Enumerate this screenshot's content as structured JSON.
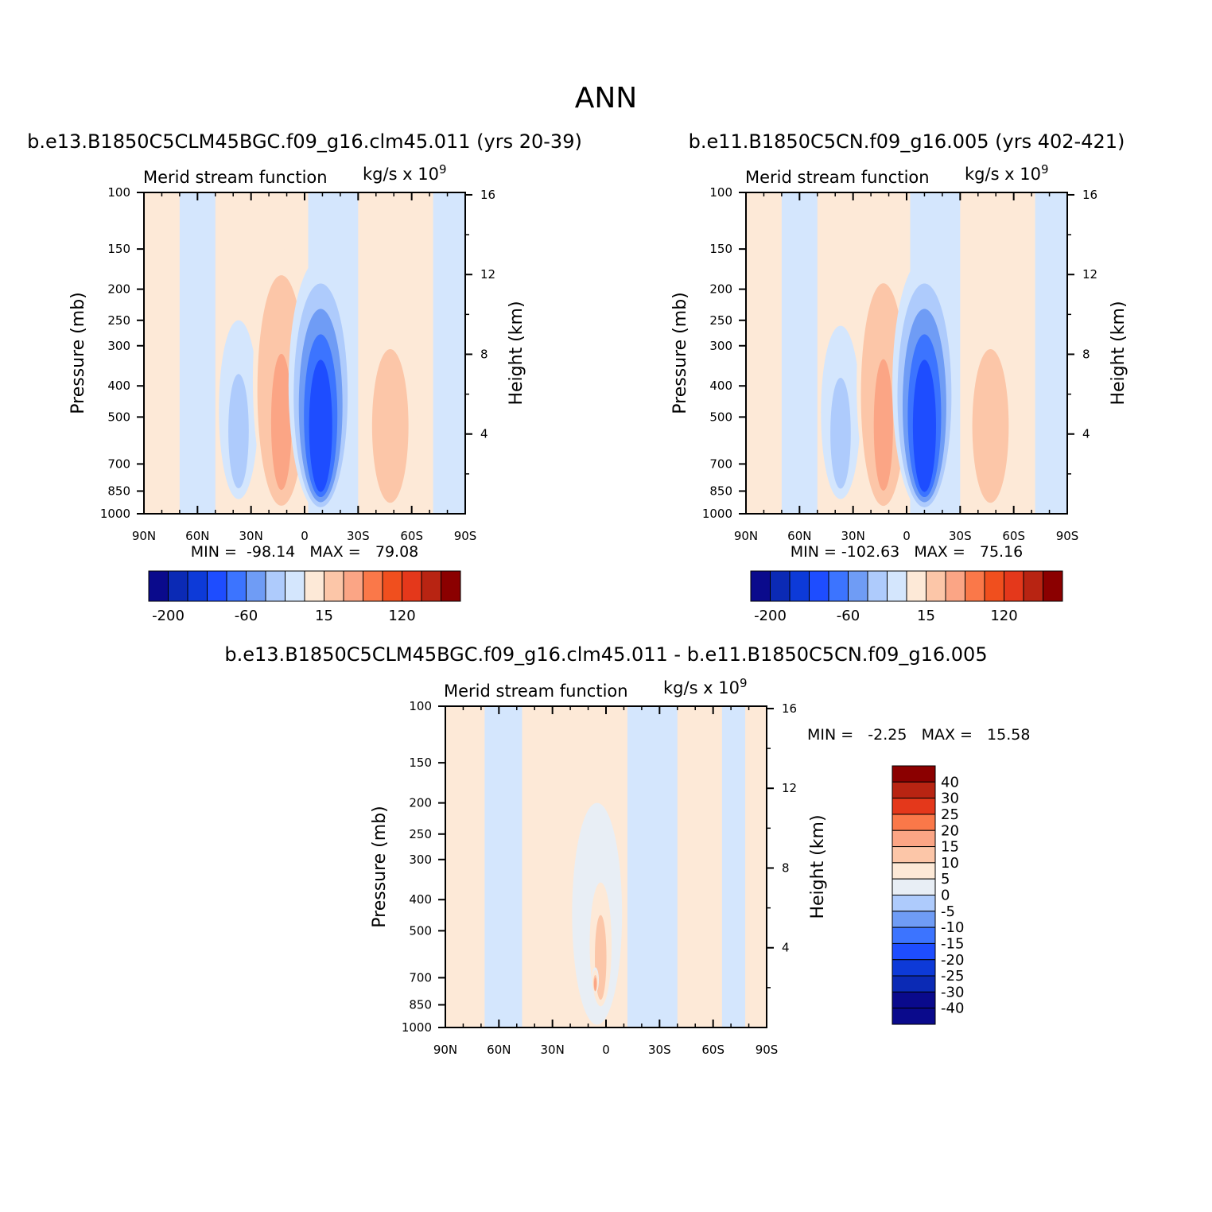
{
  "page_title": "ANN",
  "panels": [
    {
      "id": "case1",
      "title": "b.e13.B1850C5CLM45BGC.f09_g16.clm45.011 (yrs 20-39)",
      "left_label": "Merid stream function",
      "right_label": "kg/s x 10",
      "right_label_exp": "9",
      "min_max": "MIN =  -98.14   MAX =   79.08",
      "ylabel": "Pressure (mb)",
      "y2label": "Height (km)"
    },
    {
      "id": "case2",
      "title": "b.e11.B1850C5CN.f09_g16.005 (yrs 402-421)",
      "left_label": "Merid stream function",
      "right_label": "kg/s x 10",
      "right_label_exp": "9",
      "min_max": "MIN = -102.63   MAX =   75.16",
      "ylabel": "Pressure (mb)",
      "y2label": "Height (km)"
    },
    {
      "id": "diff",
      "title": "b.e13.B1850C5CLM45BGC.f09_g16.clm45.011 - b.e11.B1850C5CN.f09_g16.005",
      "left_label": "Merid stream function",
      "right_label": "kg/s x 10",
      "right_label_exp": "9",
      "min_max": "MIN =   -2.25   MAX =   15.58",
      "ylabel": "Pressure (mb)",
      "y2label": "Height (km)"
    }
  ],
  "chart_data": [
    {
      "type": "heatmap",
      "title": "b.e13.B1850C5CLM45BGC.f09_g16.clm45.011 (yrs 20-39)",
      "x_tick_labels": [
        "90N",
        "60N",
        "30N",
        "0",
        "30S",
        "60S",
        "90S"
      ],
      "x_ticks_deg": [
        90,
        60,
        30,
        0,
        -30,
        -60,
        -90
      ],
      "xlim": [
        90,
        -90
      ],
      "y_tick_labels": [
        "100",
        "150",
        "200",
        "250",
        "300",
        "400",
        "500",
        "700",
        "850",
        "1000"
      ],
      "ylim_mb": [
        1000,
        100
      ],
      "y_scale": "log",
      "y2_tick_labels": [
        "4",
        "8",
        "12",
        "16"
      ],
      "y2_ticks_km": [
        4,
        8,
        12,
        16
      ],
      "ylabel": "Pressure (mb)",
      "y2label": "Height (km)",
      "min": -98.14,
      "max": 79.08,
      "colorbar_labels": [
        "-200",
        "-60",
        "15",
        "120"
      ],
      "colors": [
        "#0a0a8c",
        "#0b2ab5",
        "#0d3ad8",
        "#1e4dff",
        "#3c74ff",
        "#6f9cf5",
        "#aecbfc",
        "#d4e6fd",
        "#fde9d7",
        "#fcc6a8",
        "#fba585",
        "#fa7849",
        "#f04f1e",
        "#e4381b",
        "#b82412",
        "#8b0000"
      ],
      "features": [
        {
          "lat": 37,
          "p_top": 250,
          "p_bot": 900,
          "width_deg": 22,
          "value": -30
        },
        {
          "lat": 13,
          "p_top": 150,
          "p_bot": 980,
          "width_deg": 32,
          "value": 45
        },
        {
          "lat": -9,
          "p_top": 160,
          "p_bot": 990,
          "width_deg": 36,
          "value": -95
        },
        {
          "lat": -48,
          "p_top": 230,
          "p_bot": 980,
          "width_deg": 30,
          "value": 35
        }
      ]
    },
    {
      "type": "heatmap",
      "title": "b.e11.B1850C5CN.f09_g16.005 (yrs 402-421)",
      "x_tick_labels": [
        "90N",
        "60N",
        "30N",
        "0",
        "30S",
        "60S",
        "90S"
      ],
      "x_ticks_deg": [
        90,
        60,
        30,
        0,
        -30,
        -60,
        -90
      ],
      "xlim": [
        90,
        -90
      ],
      "y_tick_labels": [
        "100",
        "150",
        "200",
        "250",
        "300",
        "400",
        "500",
        "700",
        "850",
        "1000"
      ],
      "ylim_mb": [
        1000,
        100
      ],
      "y_scale": "log",
      "y2_tick_labels": [
        "4",
        "8",
        "12",
        "16"
      ],
      "y2_ticks_km": [
        4,
        8,
        12,
        16
      ],
      "ylabel": "Pressure (mb)",
      "y2label": "Height (km)",
      "min": -102.63,
      "max": 75.16,
      "colorbar_labels": [
        "-200",
        "-60",
        "15",
        "120"
      ],
      "colors": [
        "#0a0a8c",
        "#0b2ab5",
        "#0d3ad8",
        "#1e4dff",
        "#3c74ff",
        "#6f9cf5",
        "#aecbfc",
        "#d4e6fd",
        "#fde9d7",
        "#fcc6a8",
        "#fba585",
        "#fa7849",
        "#f04f1e",
        "#e4381b",
        "#b82412",
        "#8b0000"
      ],
      "features": [
        {
          "lat": 37,
          "p_top": 260,
          "p_bot": 900,
          "width_deg": 22,
          "value": -30
        },
        {
          "lat": 13,
          "p_top": 160,
          "p_bot": 980,
          "width_deg": 30,
          "value": 45
        },
        {
          "lat": -10,
          "p_top": 160,
          "p_bot": 990,
          "width_deg": 36,
          "value": -100
        },
        {
          "lat": -47,
          "p_top": 230,
          "p_bot": 980,
          "width_deg": 30,
          "value": 35
        }
      ]
    },
    {
      "type": "heatmap",
      "title": "b.e13.B1850C5CLM45BGC.f09_g16.clm45.011 - b.e11.B1850C5CN.f09_g16.005",
      "x_tick_labels": [
        "90N",
        "60N",
        "30N",
        "0",
        "30S",
        "60S",
        "90S"
      ],
      "x_ticks_deg": [
        90,
        60,
        30,
        0,
        -30,
        -60,
        -90
      ],
      "xlim": [
        90,
        -90
      ],
      "y_tick_labels": [
        "100",
        "150",
        "200",
        "250",
        "300",
        "400",
        "500",
        "700",
        "850",
        "1000"
      ],
      "ylim_mb": [
        1000,
        100
      ],
      "y_scale": "log",
      "y2_tick_labels": [
        "4",
        "8",
        "12",
        "16"
      ],
      "y2_ticks_km": [
        4,
        8,
        12,
        16
      ],
      "ylabel": "Pressure (mb)",
      "y2label": "Height (km)",
      "min": -2.25,
      "max": 15.58,
      "colorbar_labels": [
        "40",
        "30",
        "25",
        "20",
        "15",
        "10",
        "5",
        "0",
        "-5",
        "-10",
        "-15",
        "-20",
        "-25",
        "-30",
        "-40"
      ],
      "colors": [
        "#8b0000",
        "#b82412",
        "#e4381b",
        "#fa7849",
        "#fba585",
        "#fcc6a8",
        "#fde9d7",
        "#e8eef5",
        "#aecbfc",
        "#6f9cf5",
        "#3c74ff",
        "#1e4dff",
        "#0d3ad8",
        "#0b2ab5",
        "#0a0a8c",
        "#0a0a8c"
      ],
      "features": [
        {
          "lat": 5,
          "p_top": 200,
          "p_bot": 980,
          "width_deg": 28,
          "value": 6
        },
        {
          "lat": 3,
          "p_top": 280,
          "p_bot": 900,
          "width_deg": 18,
          "value": 12
        },
        {
          "lat": 6,
          "p_top": 650,
          "p_bot": 780,
          "width_deg": 4,
          "value": 16
        }
      ]
    }
  ]
}
